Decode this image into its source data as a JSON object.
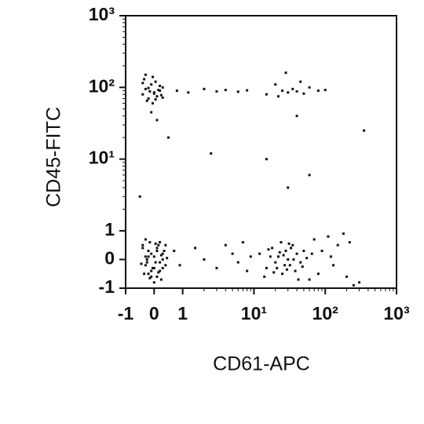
{
  "chart_data": {
    "type": "scatter",
    "xlabel": "CD61-APC",
    "ylabel": "CD45-FITC",
    "color": "#111111",
    "scale": "biexponential",
    "xlim": [
      -1,
      1000
    ],
    "ylim": [
      -1,
      1000
    ],
    "xticks": [
      -1,
      0,
      1,
      {
        "value": 10,
        "label": "10¹"
      },
      {
        "value": 100,
        "label": "10²"
      },
      {
        "value": 1000,
        "label": "10³"
      }
    ],
    "yticks": [
      -1,
      0,
      1,
      {
        "value": 10,
        "label": "10¹"
      },
      {
        "value": 100,
        "label": "10²"
      },
      {
        "value": 1000,
        "label": "10³"
      }
    ],
    "x": [
      -0.4,
      -0.3,
      -0.2,
      -0.1,
      0,
      0.1,
      0.2,
      0.3,
      -0.35,
      -0.25,
      -0.15,
      -0.05,
      0.05,
      0.15,
      0.25,
      0.35,
      -0.3,
      -0.2,
      -0.1,
      0,
      0.1,
      0.2,
      0.3,
      0.4,
      -0.4,
      -0.2,
      0,
      0.2,
      0.4,
      -0.3,
      -0.1,
      0.1,
      0.3,
      -0.25,
      0.05,
      0.25,
      -0.15,
      0.15,
      0.45,
      -0.45,
      -0.4,
      -0.3,
      -0.2,
      -0.1,
      0,
      0.1,
      0.2,
      0.3,
      -0.35,
      -0.25,
      -0.15,
      -0.05,
      0.05,
      0.15,
      0.25,
      -0.3,
      -0.1,
      0.1,
      0.2,
      0,
      -0.2,
      0.3,
      -0.4,
      0.05,
      -0.05,
      12,
      15,
      18,
      20,
      22,
      25,
      28,
      30,
      32,
      35,
      38,
      40,
      45,
      50,
      14,
      17,
      21,
      24,
      27,
      33,
      36,
      42,
      16,
      19,
      26,
      29,
      31,
      48,
      55,
      23,
      0.7,
      0.9,
      1.5,
      2,
      3,
      4,
      5,
      6,
      7,
      8,
      9,
      70,
      80,
      90,
      110,
      130,
      150,
      180,
      200,
      250,
      300,
      60,
      65,
      120,
      220,
      0.8,
      1.2,
      2,
      3,
      4,
      6,
      8,
      15,
      20,
      25,
      30,
      35,
      40,
      50,
      60,
      80,
      100,
      28,
      45,
      22,
      2.5,
      15,
      60,
      40,
      350,
      -0.5,
      0.5,
      30
    ],
    "y": [
      0.5,
      -0.2,
      0.3,
      -0.6,
      0.1,
      0.4,
      -0.4,
      0.2,
      -0.5,
      0,
      0.6,
      -0.3,
      -0.1,
      0.5,
      -0.7,
      0.3,
      0.1,
      -0.5,
      0.2,
      -0.3,
      -0.6,
      0.6,
      0,
      -0.2,
      0.4,
      0.1,
      -0.8,
      -0.1,
      0.5,
      0.7,
      -0.4,
      0.3,
      -0.3,
      -0.1,
      0.55,
      0.15,
      -0.65,
      -0.45,
      0.05,
      -0.15,
      80,
      95,
      70,
      110,
      85,
      75,
      90,
      100,
      130,
      65,
      88,
      60,
      120,
      92,
      78,
      150,
      45,
      35,
      105,
      82,
      98,
      72,
      115,
      68,
      140,
      0.2,
      -0.3,
      0.4,
      -0.1,
      0.1,
      -0.5,
      0.3,
      0,
      -0.2,
      0.5,
      -0.4,
      0.2,
      -0.1,
      0.3,
      -0.6,
      0.1,
      -0.3,
      0.6,
      -0.2,
      0.4,
      0,
      -0.7,
      0.35,
      -0.45,
      0.15,
      -0.35,
      0.55,
      -0.25,
      0.05,
      0.25,
      0.3,
      -0.2,
      0.4,
      0,
      -0.3,
      0.5,
      0.2,
      -0.1,
      0.6,
      -0.4,
      0.1,
      0.7,
      -0.5,
      0.3,
      0.8,
      -0.2,
      0.5,
      0.9,
      -0.6,
      -0.9,
      -0.8,
      -0.7,
      0.2,
      0.1,
      0.6,
      90,
      85,
      95,
      88,
      92,
      87,
      91,
      80,
      110,
      90,
      85,
      95,
      88,
      82,
      100,
      90,
      92,
      160,
      120,
      75,
      12,
      10,
      6,
      40,
      25,
      3,
      20,
      4
    ]
  }
}
